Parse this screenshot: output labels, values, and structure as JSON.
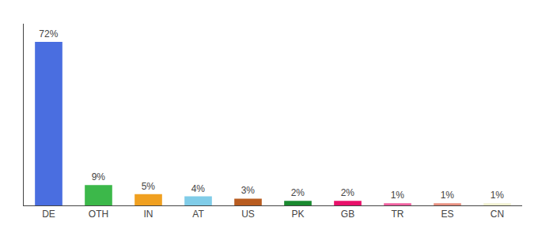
{
  "chart_data": {
    "type": "bar",
    "categories": [
      "DE",
      "OTH",
      "IN",
      "AT",
      "US",
      "PK",
      "GB",
      "TR",
      "ES",
      "CN"
    ],
    "values": [
      72,
      9,
      5,
      4,
      3,
      2,
      2,
      1,
      1,
      1
    ],
    "value_labels": [
      "72%",
      "9%",
      "5%",
      "4%",
      "3%",
      "2%",
      "2%",
      "1%",
      "1%",
      "1%"
    ],
    "colors": [
      "#4a6ee0",
      "#3cb84a",
      "#f0a020",
      "#80cce8",
      "#b85c20",
      "#1a8a30",
      "#e8106a",
      "#f060a0",
      "#e89080",
      "#f0f0d0"
    ],
    "ylim": [
      0,
      80
    ],
    "data_labels": true,
    "tick_labels": "x",
    "grid": false
  }
}
